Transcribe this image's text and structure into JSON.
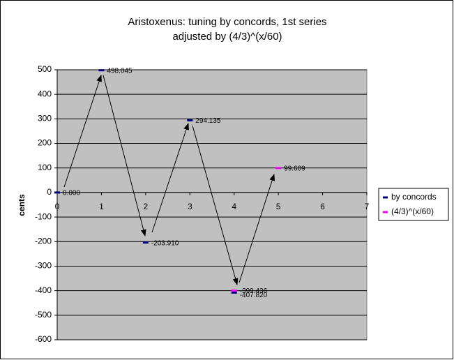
{
  "chart_data": {
    "type": "scatter",
    "title": [
      "Aristoxenus: tuning by concords, 1st series",
      "adjusted by (4/3)^(x/60)"
    ],
    "y_label": "cents",
    "xlim": [
      0,
      7
    ],
    "xticks": [
      0,
      1,
      2,
      3,
      4,
      5,
      6,
      7
    ],
    "ylim": [
      -600,
      500
    ],
    "yticks": [
      -600,
      -500,
      -400,
      -300,
      -200,
      -100,
      0,
      100,
      200,
      300,
      400,
      500
    ],
    "grid": true,
    "legend": "right",
    "series": [
      {
        "name": "by concords",
        "color": "#000080",
        "x": [
          0,
          1,
          2,
          3,
          4
        ],
        "values": [
          0,
          498.045,
          -203.91,
          294.135,
          -407.82
        ],
        "value_labels": [
          "0.000",
          "498.045",
          "-203.910",
          "294.135",
          "-407.820"
        ]
      },
      {
        "name": "(4/3)^(x/60)",
        "color": "#ff00ff",
        "x": [
          4,
          5
        ],
        "values": [
          -399.436,
          99.609
        ],
        "value_labels": [
          "-399.436",
          "99.609"
        ]
      }
    ]
  }
}
